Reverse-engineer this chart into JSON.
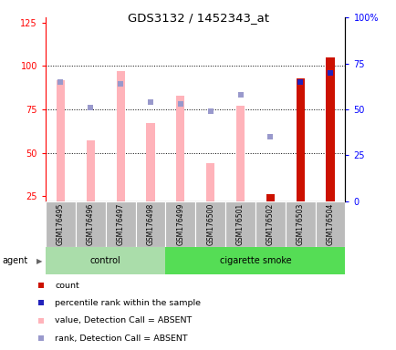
{
  "title": "GDS3132 / 1452343_at",
  "samples": [
    "GSM176495",
    "GSM176496",
    "GSM176497",
    "GSM176498",
    "GSM176499",
    "GSM176500",
    "GSM176501",
    "GSM176502",
    "GSM176503",
    "GSM176504"
  ],
  "ylim_left": [
    22,
    128
  ],
  "ylim_right": [
    0,
    100
  ],
  "yticks_left": [
    25,
    50,
    75,
    100,
    125
  ],
  "yticks_right": [
    0,
    25,
    50,
    75,
    100
  ],
  "ytick_labels_right": [
    "0",
    "25",
    "50",
    "75",
    "100%"
  ],
  "pink_bar_top": [
    92,
    57,
    97,
    67,
    83,
    44,
    77,
    null,
    93,
    105
  ],
  "pink_bar_bottom": [
    22,
    22,
    22,
    22,
    22,
    22,
    22,
    null,
    22,
    22
  ],
  "light_blue_dot_pct": [
    65,
    51,
    64,
    54,
    53,
    49,
    58,
    35,
    null,
    null
  ],
  "red_bar_top": [
    null,
    null,
    null,
    null,
    null,
    null,
    null,
    26,
    93,
    105
  ],
  "red_bar_bottom": [
    null,
    null,
    null,
    null,
    null,
    null,
    null,
    22,
    22,
    22
  ],
  "blue_sq_pct": [
    null,
    null,
    null,
    null,
    null,
    null,
    null,
    null,
    65,
    70
  ],
  "pink_color": "#ffb3ba",
  "light_blue_color": "#9999cc",
  "red_color": "#cc1100",
  "blue_color": "#2222bb",
  "control_bg": "#aaddaa",
  "smoke_bg": "#55dd55",
  "label_bg": "#bbbbbb",
  "agent_label": "agent",
  "control_label": "control",
  "smoke_label": "cigarette smoke",
  "legend_items": [
    "count",
    "percentile rank within the sample",
    "value, Detection Call = ABSENT",
    "rank, Detection Call = ABSENT"
  ]
}
